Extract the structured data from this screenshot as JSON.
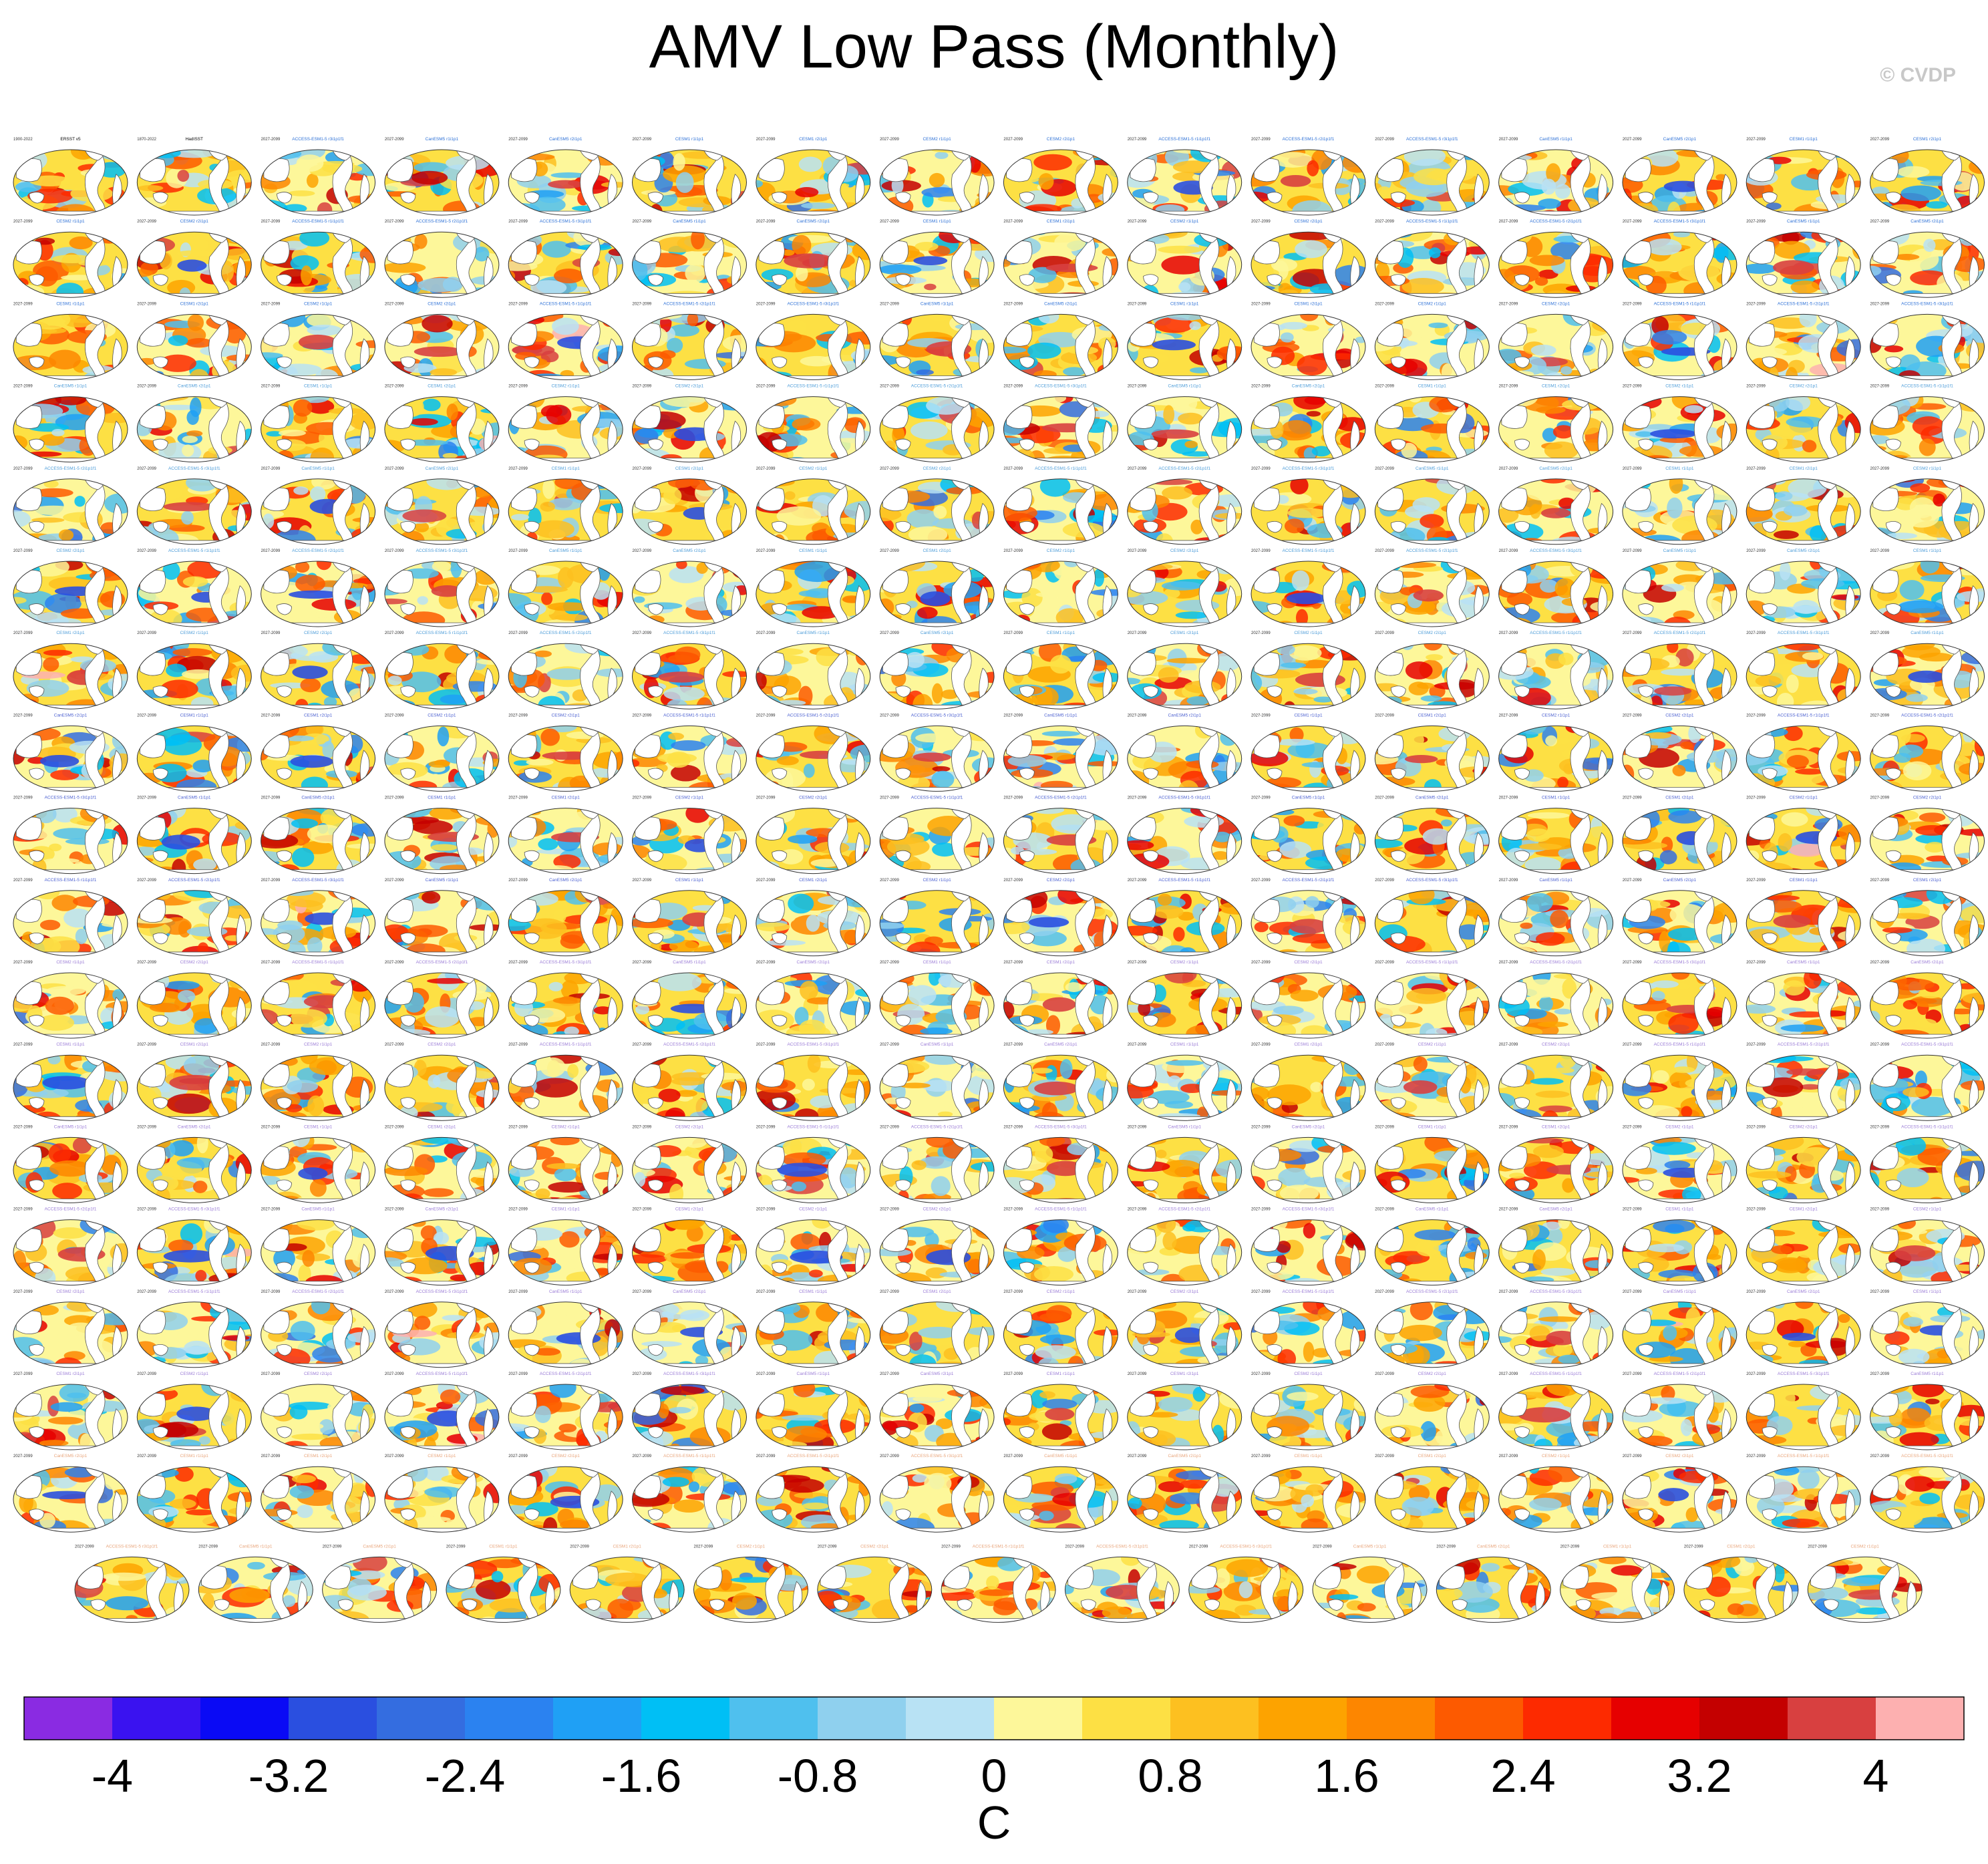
{
  "figure": {
    "title": "AMV Low Pass (Monthly)",
    "credit": "© CVDP"
  },
  "chart_data": {
    "type": "heatmap",
    "description_kind": "grid of global SST regression maps",
    "title": "AMV Low Pass (Monthly)",
    "panel_rows": 18,
    "panels_per_full_row": 16,
    "last_row_panels": 15,
    "panel_grid": {
      "period_label_obs": [
        "1900-2022",
        "1870-2022"
      ],
      "period_label_model": "2027-2099",
      "observations": [
        "ERSST v5",
        "HadISST"
      ],
      "model_name_colors": {
        "ACCESS-ESM1-5": "#2b6fd6",
        "CanESM5": "#4a9bd8",
        "CESM1": "#4a5fd0",
        "CESM2": "#9a7bd6",
        "other": "#e8a47a"
      },
      "representative_panel_titles": [
        "ERSST v5",
        "HadISST",
        "ACCESS-ESM1-5 r1i1p1f1",
        "ACCESS-ESM1-5 r2i1p1f1",
        "ACCESS-ESM1-5 r3i1p1f1",
        "CanESM5 r1i1p1",
        "CanESM5 r2i1p1",
        "CESM1 r1i1p1",
        "CESM1 r2i1p1",
        "CESM2 r1i1p1",
        "CESM2 r2i1p1"
      ]
    },
    "colorbar": {
      "label": "C",
      "levels": [
        -4.4,
        -4.0,
        -3.6,
        -3.2,
        -2.8,
        -2.4,
        -2.0,
        -1.6,
        -1.2,
        -0.8,
        -0.4,
        0.0,
        0.4,
        0.8,
        1.2,
        1.6,
        2.0,
        2.4,
        2.8,
        3.2,
        3.6,
        4.0,
        4.4
      ],
      "tick_labels": [
        "-4",
        "-3.2",
        "-2.4",
        "-1.6",
        "-0.8",
        "0",
        "0.8",
        "1.6",
        "2.4",
        "3.2",
        "4"
      ],
      "tick_values": [
        -4,
        -3.2,
        -2.4,
        -1.6,
        -0.8,
        0,
        0.8,
        1.6,
        2.4,
        3.2,
        4
      ],
      "colors": [
        "#8a2be2",
        "#3a12f0",
        "#0a0af5",
        "#2a4fe0",
        "#346de0",
        "#2b82f0",
        "#1fa0f5",
        "#00bff5",
        "#4fc0ee",
        "#8fd0ee",
        "#b8e2f4",
        "#fdf79a",
        "#fde044",
        "#fdc020",
        "#fda300",
        "#fd8600",
        "#fd5a00",
        "#fd2a00",
        "#e60000",
        "#c40000",
        "#d84040",
        "#fdb0b0"
      ]
    }
  }
}
